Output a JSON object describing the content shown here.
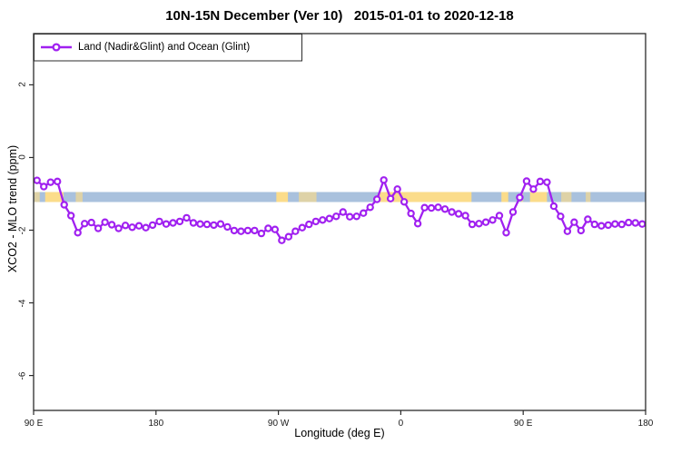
{
  "title": "10N-15N December (Ver 10)   2015-01-01 to 2020-12-18",
  "legend": {
    "label": "Land (Nadir&Glint) and Ocean (Glint)"
  },
  "colors": {
    "series": "#A020F0",
    "marker_fill": "#ffffff",
    "ocean_band": "#A9C1DD",
    "land_band": "#FBDC8A",
    "axis": "#2b2b2b",
    "text": "#000000"
  },
  "chart_data": {
    "type": "line",
    "title": "10N-15N December (Ver 10)   2015-01-01 to 2020-12-18",
    "xlabel": "Longitude (deg E)",
    "ylabel": "XCO2 - MLO trend (ppm)",
    "xlim": [
      90,
      540
    ],
    "ylim": [
      -6.96,
      3.41
    ],
    "grid": false,
    "legend_position": "top-left",
    "x_ticks": [
      {
        "value": 90,
        "label": "90 E"
      },
      {
        "value": 180,
        "label": "180"
      },
      {
        "value": 270,
        "label": "90 W"
      },
      {
        "value": 360,
        "label": "0"
      },
      {
        "value": 450,
        "label": "90 E"
      },
      {
        "value": 540,
        "label": "180"
      }
    ],
    "y_ticks": [
      {
        "value": 2,
        "label": "2"
      },
      {
        "value": 0,
        "label": "0"
      },
      {
        "value": -2,
        "label": "-2"
      },
      {
        "value": -4,
        "label": "-4"
      },
      {
        "value": -6,
        "label": "-6"
      }
    ],
    "reference_band": {
      "description": "land/ocean mask strip for 10N-15N",
      "y_range": [
        -1.225,
        -0.95
      ],
      "ocean_color": "#A9C1DD",
      "land_color": "#FBDC8A",
      "land_segments_lon": [
        [
          98.5,
          112
        ],
        [
          268.5,
          277
        ],
        [
          344.5,
          412
        ],
        [
          434,
          439
        ],
        [
          455,
          467.5
        ]
      ],
      "land_speckle_segments_lon": [
        [
          90.5,
          94.5
        ],
        [
          121,
          126
        ],
        [
          285,
          298
        ],
        [
          448.5,
          450
        ],
        [
          478,
          485.5
        ],
        [
          496,
          499.5
        ]
      ]
    },
    "series": [
      {
        "name": "Land (Nadir&Glint) and Ocean (Glint)",
        "color": "#A020F0",
        "marker": "open-circle",
        "x": [
          92.5,
          97.5,
          102.5,
          107.5,
          112.5,
          117.5,
          122.5,
          127.5,
          132.5,
          137.5,
          142.5,
          147.5,
          152.5,
          157.5,
          162.5,
          167.5,
          172.5,
          177.5,
          182.5,
          187.5,
          192.5,
          197.5,
          202.5,
          207.5,
          212.5,
          217.5,
          222.5,
          227.5,
          232.5,
          237.5,
          242.5,
          247.5,
          252.5,
          257.5,
          262.5,
          267.5,
          272.5,
          277.5,
          282.5,
          287.5,
          292.5,
          297.5,
          302.5,
          307.5,
          312.5,
          317.5,
          322.5,
          327.5,
          332.5,
          337.5,
          342.5,
          347.5,
          352.5,
          357.5,
          362.5,
          367.5,
          372.5,
          377.5,
          382.5,
          387.5,
          392.5,
          397.5,
          402.5,
          407.5,
          412.5,
          417.5,
          422.5,
          427.5,
          432.5,
          437.5,
          442.5,
          447.5,
          452.5,
          457.5,
          462.5,
          467.5,
          472.5,
          477.5,
          482.5,
          487.5,
          492.5,
          497.5,
          502.5,
          507.5,
          512.5,
          517.5,
          522.5,
          527.5,
          532.5,
          537.5
        ],
        "y": [
          -0.63,
          -0.8,
          -0.68,
          -0.66,
          -1.3,
          -1.6,
          -2.07,
          -1.82,
          -1.79,
          -1.95,
          -1.78,
          -1.85,
          -1.95,
          -1.87,
          -1.92,
          -1.88,
          -1.93,
          -1.86,
          -1.76,
          -1.83,
          -1.8,
          -1.76,
          -1.66,
          -1.8,
          -1.83,
          -1.84,
          -1.86,
          -1.83,
          -1.91,
          -2.01,
          -2.03,
          -2.01,
          -2.01,
          -2.09,
          -1.95,
          -1.98,
          -2.28,
          -2.18,
          -2.03,
          -1.93,
          -1.84,
          -1.76,
          -1.72,
          -1.68,
          -1.62,
          -1.5,
          -1.63,
          -1.62,
          -1.53,
          -1.37,
          -1.15,
          -0.62,
          -1.13,
          -0.87,
          -1.22,
          -1.54,
          -1.82,
          -1.38,
          -1.39,
          -1.37,
          -1.42,
          -1.5,
          -1.55,
          -1.6,
          -1.84,
          -1.82,
          -1.78,
          -1.72,
          -1.6,
          -2.07,
          -1.5,
          -1.1,
          -0.65,
          -0.87,
          -0.66,
          -0.68,
          -1.34,
          -1.62,
          -2.03,
          -1.78,
          -2.01,
          -1.7,
          -1.84,
          -1.88,
          -1.86,
          -1.83,
          -1.84,
          -1.79,
          -1.8,
          -1.83
        ]
      }
    ]
  }
}
